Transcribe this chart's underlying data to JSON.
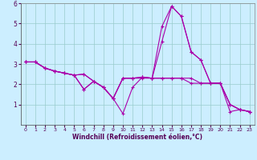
{
  "xlabel": "Windchill (Refroidissement éolien,°C)",
  "background_color": "#cceeff",
  "line_color": "#aa00aa",
  "grid_color": "#99cccc",
  "xlim": [
    -0.5,
    23.5
  ],
  "ylim": [
    0,
    6
  ],
  "xticks": [
    0,
    1,
    2,
    3,
    4,
    5,
    6,
    7,
    8,
    9,
    10,
    11,
    12,
    13,
    14,
    15,
    16,
    17,
    18,
    19,
    20,
    21,
    22,
    23
  ],
  "yticks": [
    1,
    2,
    3,
    4,
    5,
    6
  ],
  "lines": [
    [
      3.1,
      3.1,
      2.8,
      2.65,
      2.55,
      2.45,
      1.75,
      2.15,
      1.85,
      1.3,
      0.55,
      1.85,
      2.35,
      2.3,
      4.1,
      5.85,
      5.35,
      3.6,
      3.2,
      2.05,
      2.05,
      0.65,
      0.75,
      0.65
    ],
    [
      3.1,
      3.1,
      2.8,
      2.65,
      2.55,
      2.45,
      1.75,
      2.15,
      1.85,
      1.3,
      2.3,
      2.3,
      2.35,
      2.3,
      4.85,
      5.85,
      5.35,
      3.6,
      3.2,
      2.05,
      2.05,
      1.0,
      0.75,
      0.65
    ],
    [
      3.1,
      3.1,
      2.8,
      2.65,
      2.55,
      2.45,
      2.5,
      2.15,
      1.85,
      1.3,
      2.3,
      2.3,
      2.35,
      2.3,
      2.3,
      2.3,
      2.3,
      2.3,
      2.05,
      2.05,
      2.05,
      1.0,
      0.75,
      0.65
    ],
    [
      3.1,
      3.1,
      2.8,
      2.65,
      2.55,
      2.45,
      2.5,
      2.15,
      1.85,
      1.3,
      2.3,
      2.3,
      2.3,
      2.3,
      2.3,
      2.3,
      2.3,
      2.05,
      2.05,
      2.05,
      2.05,
      1.0,
      0.75,
      0.65
    ]
  ]
}
